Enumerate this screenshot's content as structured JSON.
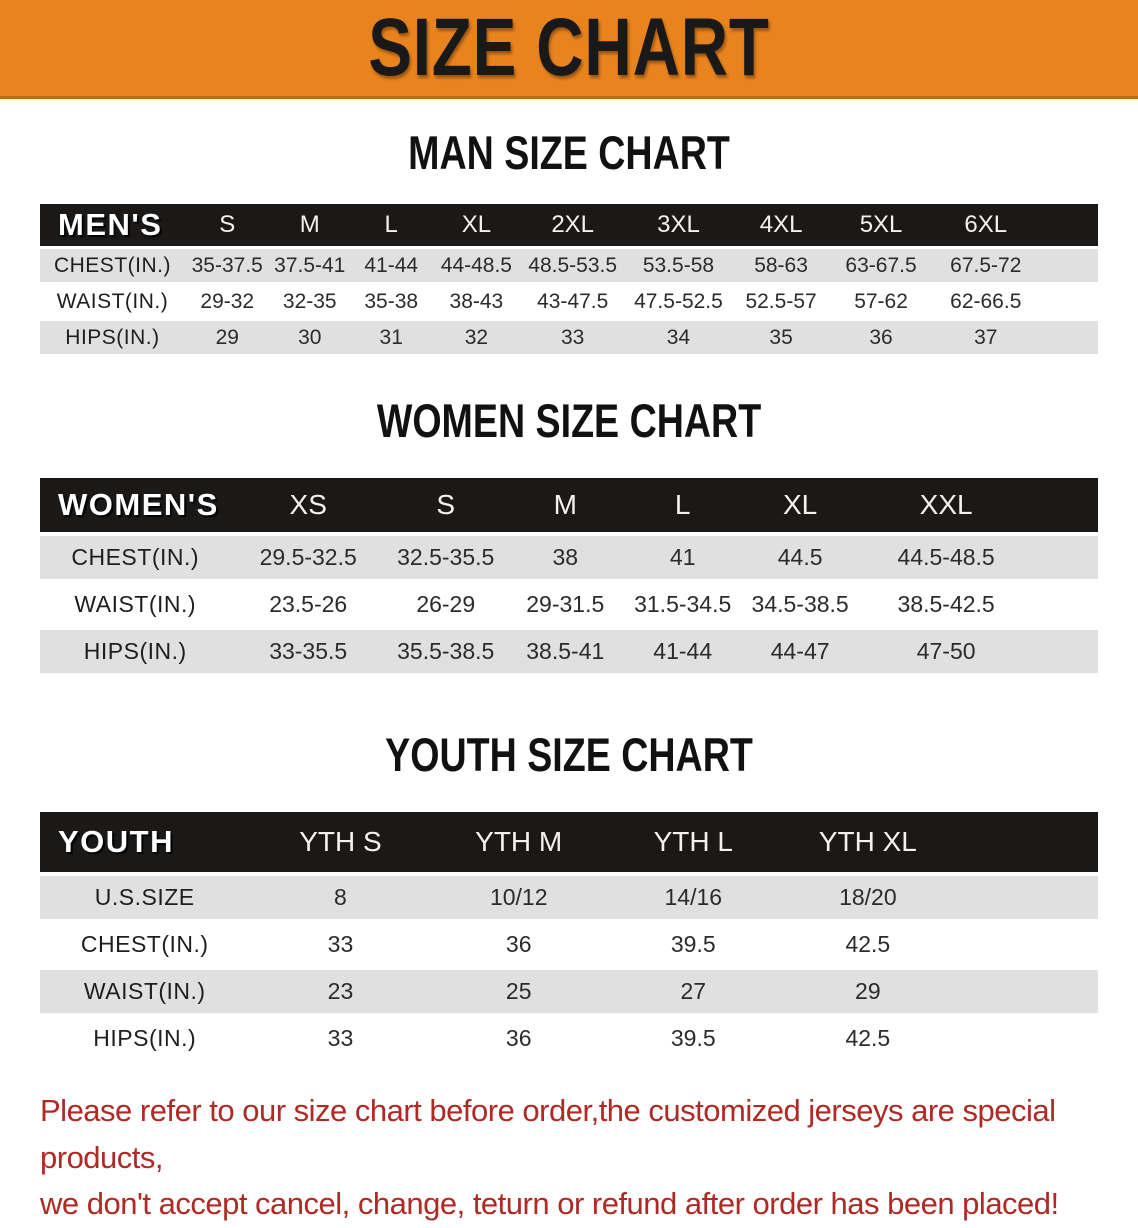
{
  "banner": {
    "title": "SIZE CHART",
    "bg_color": "#E8831E",
    "text_color": "#191919"
  },
  "colors": {
    "table_header_bg": "#1b1917",
    "table_header_text": "#ffffff",
    "stripe_row_bg": "#e0e0e0",
    "footer_text": "#b02a25"
  },
  "sections": [
    {
      "id": "men",
      "heading": "MAN SIZE CHART",
      "table": {
        "header_label": "MEN'S",
        "columns": [
          "S",
          "M",
          "L",
          "XL",
          "2XL",
          "3XL",
          "4XL",
          "5XL",
          "6XL"
        ],
        "rows": [
          {
            "label": "CHEST(IN.)",
            "values": [
              "35-37.5",
              "37.5-41",
              "41-44",
              "44-48.5",
              "48.5-53.5",
              "53.5-58",
              "58-63",
              "63-67.5",
              "67.5-72"
            ]
          },
          {
            "label": "WAIST(IN.)",
            "values": [
              "29-32",
              "32-35",
              "35-38",
              "38-43",
              "43-47.5",
              "47.5-52.5",
              "52.5-57",
              "57-62",
              "62-66.5"
            ]
          },
          {
            "label": "HIPS(IN.)",
            "values": [
              "29",
              "30",
              "31",
              "32",
              "33",
              "34",
              "35",
              "36",
              "37"
            ]
          }
        ]
      }
    },
    {
      "id": "women",
      "heading": "WOMEN SIZE CHART",
      "table": {
        "header_label": "WOMEN'S",
        "columns": [
          "XS",
          "S",
          "M",
          "L",
          "XL",
          "XXL"
        ],
        "rows": [
          {
            "label": "CHEST(IN.)",
            "values": [
              "29.5-32.5",
              "32.5-35.5",
              "38",
              "41",
              "44.5",
              "44.5-48.5"
            ]
          },
          {
            "label": "WAIST(IN.)",
            "values": [
              "23.5-26",
              "26-29",
              "29-31.5",
              "31.5-34.5",
              "34.5-38.5",
              "38.5-42.5"
            ]
          },
          {
            "label": "HIPS(IN.)",
            "values": [
              "33-35.5",
              "35.5-38.5",
              "38.5-41",
              "41-44",
              "44-47",
              "47-50"
            ]
          }
        ]
      }
    },
    {
      "id": "youth",
      "heading": "YOUTH SIZE CHART",
      "table": {
        "header_label": "YOUTH",
        "columns": [
          "YTH S",
          "YTH M",
          "YTH L",
          "YTH XL"
        ],
        "rows": [
          {
            "label": "U.S.SIZE",
            "values": [
              "8",
              "10/12",
              "14/16",
              "18/20"
            ]
          },
          {
            "label": "CHEST(IN.)",
            "values": [
              "33",
              "36",
              "39.5",
              "42.5"
            ]
          },
          {
            "label": "WAIST(IN.)",
            "values": [
              "23",
              "25",
              "27",
              "29"
            ]
          },
          {
            "label": "HIPS(IN.)",
            "values": [
              "33",
              "36",
              "39.5",
              "42.5"
            ]
          }
        ]
      }
    }
  ],
  "footer": {
    "line1": "Please refer to our size chart before order,the customized jerseys are special products,",
    "line2": "we don't accept cancel, change, teturn or refund after order has been placed!"
  }
}
